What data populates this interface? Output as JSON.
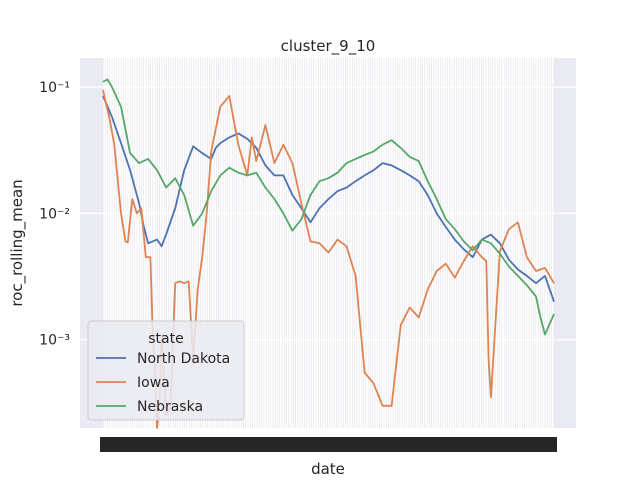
{
  "chart_data": {
    "type": "line",
    "title": "cluster_9_10",
    "xlabel": "date",
    "ylabel": "roc_rolling_mean",
    "yscale": "log",
    "ylim": [
      0.0002,
      0.17
    ],
    "y_ticks": [
      0.001,
      0.01,
      0.1
    ],
    "y_tick_labels": [
      "10⁻³",
      "10⁻²",
      "10⁻¹"
    ],
    "x_range": [
      0,
      200
    ],
    "x_tick_count": 200,
    "grid": true,
    "legend": {
      "title": "state",
      "placement": "lower-left"
    },
    "series": [
      {
        "name": "North Dakota",
        "color": "#4c72b0",
        "x": [
          0,
          4,
          8,
          12,
          16,
          18,
          20,
          24,
          26,
          28,
          32,
          36,
          40,
          44,
          48,
          50,
          52,
          56,
          60,
          64,
          68,
          72,
          76,
          80,
          84,
          88,
          92,
          96,
          100,
          104,
          108,
          112,
          116,
          120,
          124,
          128,
          132,
          136,
          140,
          144,
          148,
          152,
          156,
          160,
          164,
          168,
          172,
          176,
          180,
          184,
          188,
          192,
          196,
          200
        ],
        "values": [
          0.085,
          0.058,
          0.036,
          0.022,
          0.012,
          0.008,
          0.0058,
          0.0062,
          0.0055,
          0.0068,
          0.011,
          0.022,
          0.034,
          0.03,
          0.027,
          0.033,
          0.036,
          0.04,
          0.043,
          0.039,
          0.033,
          0.024,
          0.02,
          0.02,
          0.014,
          0.011,
          0.0085,
          0.011,
          0.013,
          0.015,
          0.016,
          0.018,
          0.02,
          0.022,
          0.025,
          0.024,
          0.022,
          0.02,
          0.018,
          0.014,
          0.01,
          0.0078,
          0.0062,
          0.0052,
          0.0045,
          0.0062,
          0.0068,
          0.0058,
          0.0043,
          0.0036,
          0.0032,
          0.0028,
          0.0032,
          0.002
        ]
      },
      {
        "name": "Iowa",
        "color": "#dd8452",
        "x": [
          0,
          3,
          5,
          7,
          8,
          10,
          11,
          13,
          15,
          17,
          19,
          21,
          22,
          23,
          24,
          25,
          26,
          28,
          30,
          32,
          34,
          36,
          38,
          40,
          42,
          44,
          46,
          48,
          52,
          56,
          60,
          64,
          66,
          68,
          72,
          76,
          80,
          84,
          88,
          92,
          96,
          100,
          104,
          108,
          112,
          116,
          120,
          124,
          128,
          132,
          136,
          140,
          144,
          148,
          152,
          156,
          160,
          164,
          168,
          170,
          171,
          172,
          176,
          180,
          184,
          188,
          192,
          196,
          200
        ],
        "values": [
          0.095,
          0.055,
          0.035,
          0.015,
          0.01,
          0.006,
          0.0059,
          0.013,
          0.01,
          0.011,
          0.0045,
          0.0045,
          0.0012,
          0.0006,
          0.0002,
          0.0003,
          0.0011,
          0.00025,
          0.0003,
          0.0028,
          0.0029,
          0.0028,
          0.0029,
          0.0007,
          0.0025,
          0.0045,
          0.01,
          0.031,
          0.07,
          0.085,
          0.035,
          0.02,
          0.04,
          0.026,
          0.05,
          0.025,
          0.035,
          0.025,
          0.012,
          0.006,
          0.0058,
          0.0049,
          0.0062,
          0.0055,
          0.0032,
          0.00055,
          0.00045,
          0.0003,
          0.0003,
          0.0013,
          0.0018,
          0.0015,
          0.0025,
          0.0035,
          0.004,
          0.0031,
          0.0042,
          0.0055,
          0.0045,
          0.0042,
          0.0007,
          0.00035,
          0.005,
          0.0075,
          0.0085,
          0.0045,
          0.0035,
          0.0037,
          0.0028
        ]
      },
      {
        "name": "Nebraska",
        "color": "#55a868",
        "x": [
          0,
          2,
          4,
          8,
          12,
          16,
          20,
          24,
          28,
          32,
          36,
          40,
          44,
          48,
          52,
          56,
          60,
          64,
          68,
          72,
          76,
          80,
          84,
          88,
          92,
          96,
          100,
          104,
          108,
          112,
          116,
          120,
          124,
          128,
          132,
          136,
          140,
          144,
          148,
          152,
          156,
          160,
          164,
          168,
          172,
          176,
          180,
          184,
          188,
          192,
          194,
          196,
          200
        ],
        "values": [
          0.11,
          0.115,
          0.1,
          0.07,
          0.03,
          0.025,
          0.027,
          0.022,
          0.016,
          0.019,
          0.014,
          0.008,
          0.01,
          0.015,
          0.02,
          0.023,
          0.021,
          0.02,
          0.021,
          0.016,
          0.013,
          0.01,
          0.0073,
          0.009,
          0.014,
          0.018,
          0.019,
          0.021,
          0.025,
          0.027,
          0.029,
          0.031,
          0.035,
          0.038,
          0.033,
          0.028,
          0.026,
          0.018,
          0.013,
          0.009,
          0.0075,
          0.006,
          0.0051,
          0.0062,
          0.0058,
          0.0048,
          0.0038,
          0.0032,
          0.0027,
          0.0022,
          0.0015,
          0.0011,
          0.0016
        ]
      }
    ]
  }
}
